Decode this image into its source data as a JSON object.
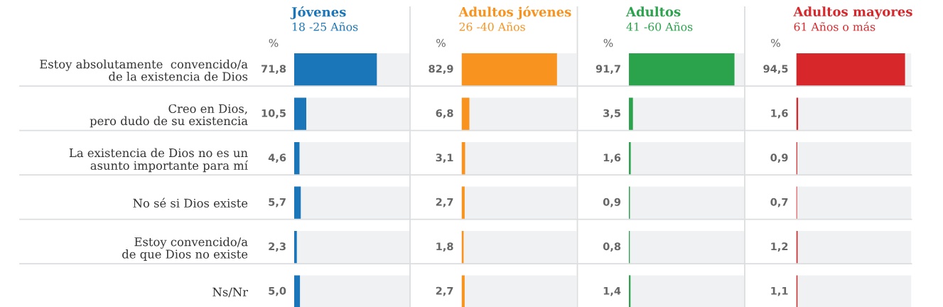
{
  "chart_data": [
    {
      "type": "bar",
      "orientation": "horizontal",
      "title": "Jóvenes",
      "subtitle": "18 -25 Años",
      "categories": [
        "Estoy absolutamente  convencido/a\nde la existencia de Dios",
        "Creo en Dios,\npero dudo de su existencia",
        "La existencia de Dios no es un\nasunto importante para mí",
        "No sé si Dios existe",
        "Estoy convencido/a\nde que Dios no existe",
        "Ns/Nr"
      ],
      "values": [
        71.8,
        10.5,
        4.6,
        5.7,
        2.3,
        5.0
      ],
      "value_labels": [
        "71,8",
        "10,5",
        "4,6",
        "5,7",
        "2,3",
        "5,0"
      ],
      "color": "#1a76b9",
      "xlim": [
        0,
        100
      ],
      "tick_labels": "y",
      "annotations": [
        "%"
      ]
    },
    {
      "type": "bar",
      "orientation": "horizontal",
      "title": "Adultos jóvenes",
      "subtitle": "26 -40 Años",
      "values": [
        82.9,
        6.8,
        3.1,
        2.7,
        1.8,
        2.7
      ],
      "value_labels": [
        "82,9",
        "6,8",
        "3,1",
        "2,7",
        "1,8",
        "2,7"
      ],
      "color": "#f7931e",
      "xlim": [
        0,
        100
      ],
      "tick_labels": false,
      "annotations": [
        "%"
      ]
    },
    {
      "type": "bar",
      "orientation": "horizontal",
      "title": "Adultos",
      "subtitle": "41 -60 Años",
      "values": [
        91.7,
        3.5,
        1.6,
        0.9,
        0.8,
        1.4
      ],
      "value_labels": [
        "91,7",
        "3,5",
        "1,6",
        "0,9",
        "0,8",
        "1,4"
      ],
      "color": "#2ba24c",
      "xlim": [
        0,
        100
      ],
      "tick_labels": false,
      "annotations": [
        "%"
      ]
    },
    {
      "type": "bar",
      "orientation": "horizontal",
      "title": "Adultos mayores",
      "subtitle": "61 Años o más",
      "values": [
        94.5,
        1.6,
        0.9,
        0.7,
        1.2,
        1.1
      ],
      "value_labels": [
        "94,5",
        "1,6",
        "0,9",
        "0,7",
        "1,2",
        "1,1"
      ],
      "color": "#d7272b",
      "xlim": [
        0,
        100
      ],
      "tick_labels": false,
      "annotations": [
        "%"
      ]
    }
  ]
}
